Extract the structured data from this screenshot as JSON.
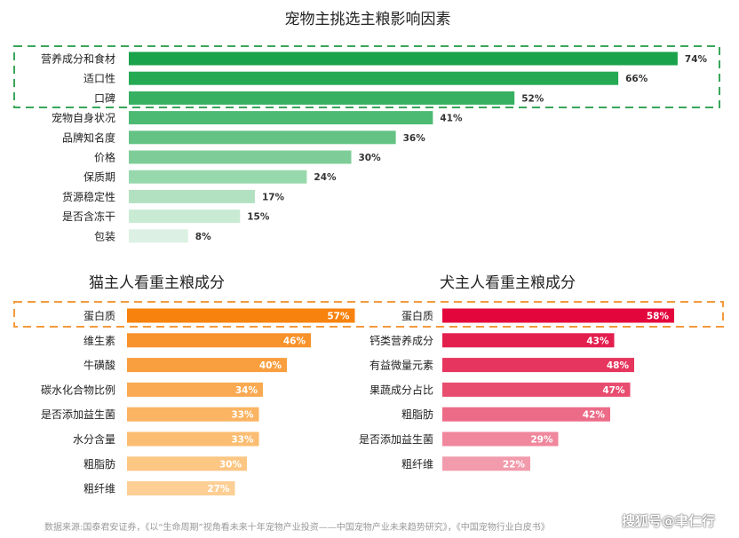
{
  "colors": {
    "highlight_green": "#3aa65a",
    "highlight_orange": "#f39a3c"
  },
  "chart_data": [
    {
      "type": "bar",
      "orientation": "horizontal",
      "title": "宠物主挑选主粮影响因素",
      "categories": [
        "营养成分和食材",
        "适口性",
        "口碑",
        "宠物自身状况",
        "品牌知名度",
        "价格",
        "保质期",
        "货源稳定性",
        "是否含冻干",
        "包装"
      ],
      "values": [
        74,
        66,
        52,
        41,
        36,
        30,
        24,
        17,
        15,
        8
      ],
      "labels": [
        "74%",
        "66%",
        "52%",
        "41%",
        "36%",
        "30%",
        "24%",
        "17%",
        "15%",
        "8%"
      ],
      "colors": [
        "#1aa34a",
        "#25aa53",
        "#37b061",
        "#4cba72",
        "#64c384",
        "#7ecd98",
        "#98d8ad",
        "#b2e1c1",
        "#c9ebd4",
        "#dcf1e3"
      ],
      "value_label_position": "outside",
      "xlim": [
        0,
        100
      ],
      "grid": false,
      "highlighted_categories": [
        "营养成分和食材",
        "适口性",
        "口碑"
      ]
    },
    {
      "type": "bar",
      "orientation": "horizontal",
      "title": "猫主人看重主粮成分",
      "categories": [
        "蛋白质",
        "维生素",
        "牛磺酸",
        "碳水化合物比例",
        "是否添加益生菌",
        "水分含量",
        "粗脂肪",
        "粗纤维"
      ],
      "values": [
        57,
        46,
        40,
        34,
        33,
        33,
        30,
        27
      ],
      "labels": [
        "57%",
        "46%",
        "40%",
        "34%",
        "33%",
        "33%",
        "30%",
        "27%"
      ],
      "colors": [
        "#f7820e",
        "#f8922b",
        "#f99f40",
        "#faaa52",
        "#fab462",
        "#fbbd72",
        "#fcc683",
        "#fdcf95"
      ],
      "value_label_position": "inside",
      "xlim": [
        0,
        100
      ],
      "grid": false,
      "highlighted_categories": [
        "蛋白质"
      ]
    },
    {
      "type": "bar",
      "orientation": "horizontal",
      "title": "犬主人看重主粮成分",
      "categories": [
        "蛋白质",
        "钙类营养成分",
        "有益微量元素",
        "果蔬成分占比",
        "粗脂肪",
        "是否添加益生菌",
        "粗纤维"
      ],
      "values": [
        58,
        43,
        48,
        47,
        42,
        29,
        22
      ],
      "labels": [
        "58%",
        "43%",
        "48%",
        "47%",
        "42%",
        "29%",
        "22%"
      ],
      "colors": [
        "#e3063c",
        "#e31f4e",
        "#e6355e",
        "#e84d70",
        "#ec6b87",
        "#f0879c",
        "#f19bac"
      ],
      "value_label_position": "inside",
      "xlim": [
        0,
        100
      ],
      "grid": false,
      "highlighted_categories": [
        "蛋白质"
      ]
    }
  ],
  "footer": {
    "source": "数据来源:国泰君安证券，《以“生命周期”视角看未来十年宠物产业投资——中国宠物产业未来趋势研究》，《中国宠物行业白皮书》",
    "watermark": "搜狐号@聿仁行"
  }
}
